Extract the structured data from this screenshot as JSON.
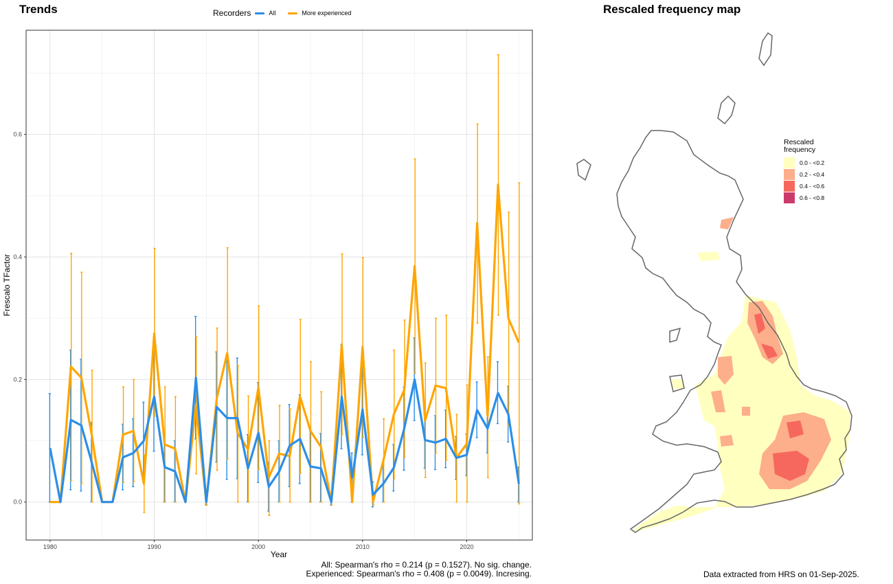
{
  "left_panel": {
    "title": "Trends"
  },
  "right_panel": {
    "title": "Rescaled frequency map"
  },
  "legend": {
    "title": "Recorders",
    "entries": [
      {
        "label": "All",
        "color": "#2b8ee8"
      },
      {
        "label": "More experienced",
        "color": "#ffa500"
      }
    ]
  },
  "stats": {
    "all": "All: Spearman's rho = 0.214 (p = 0.1527). No sig. change.",
    "experienced": "Experienced: Spearman's rho = 0.408 (p = 0.0049). Incresing."
  },
  "footer": "Data extracted from HRS on 01-Sep-2025.",
  "map_legend": {
    "title_line1": "Rescaled",
    "title_line2": "frequency",
    "items": [
      {
        "label": "0.0 - <0.2",
        "color": "#ffffc0"
      },
      {
        "label": "0.2 - <0.4",
        "color": "#fdae8a"
      },
      {
        "label": "0.4 - <0.6",
        "color": "#f6685e"
      },
      {
        "label": "0.6 - <0.8",
        "color": "#cc3a6c"
      }
    ]
  },
  "chart_data": {
    "type": "line",
    "xlabel": "Year",
    "ylabel": "Frescalo TFactor",
    "xlim": [
      1977.7,
      2026.3
    ],
    "ylim": [
      -0.062,
      0.77
    ],
    "xticks": [
      1980,
      1990,
      2000,
      2010,
      2020
    ],
    "xtick_labels": [
      "1980",
      "1990",
      "2000",
      "2010",
      "2020"
    ],
    "yticks": [
      0.0,
      0.2,
      0.4,
      0.6
    ],
    "ytick_labels": [
      "0.0",
      "0.2",
      "0.4",
      "0.6"
    ],
    "grid": true,
    "legend_position": "top",
    "series": [
      {
        "name": "All",
        "color": "#2b8ee8",
        "points": [
          [
            1980,
            0.088,
            0,
            0.177
          ],
          [
            1981,
            0.0,
            0,
            0
          ],
          [
            1982,
            0.134,
            0.02,
            0.248
          ],
          [
            1983,
            0.125,
            0.018,
            0.233
          ],
          [
            1984,
            0.065,
            0.0,
            0.13
          ],
          [
            1985,
            0.0,
            0,
            0
          ],
          [
            1986,
            0.0,
            0,
            0
          ],
          [
            1987,
            0.073,
            0.02,
            0.127
          ],
          [
            1988,
            0.08,
            0.025,
            0.136
          ],
          [
            1989,
            0.1,
            0.037,
            0.163
          ],
          [
            1990,
            0.172,
            0.083,
            0.261
          ],
          [
            1991,
            0.057,
            0,
            0.113
          ],
          [
            1992,
            0.05,
            0,
            0.1
          ],
          [
            1993,
            0.0,
            0,
            0
          ],
          [
            1994,
            0.203,
            0.103,
            0.303
          ],
          [
            1995,
            0.0,
            -0.005,
            0.005
          ],
          [
            1996,
            0.155,
            0.065,
            0.245
          ],
          [
            1997,
            0.137,
            0.037,
            0.237
          ],
          [
            1998,
            0.137,
            0.038,
            0.235
          ],
          [
            1999,
            0.055,
            0,
            0.11
          ],
          [
            2000,
            0.113,
            0.032,
            0.195
          ],
          [
            2001,
            0.025,
            -0.015,
            0.065
          ],
          [
            2002,
            0.05,
            0,
            0.1
          ],
          [
            2003,
            0.092,
            0.025,
            0.159
          ],
          [
            2004,
            0.103,
            0.03,
            0.175
          ],
          [
            2005,
            0.058,
            0,
            0.117
          ],
          [
            2006,
            0.055,
            0,
            0.112
          ],
          [
            2007,
            0.0,
            -0.005,
            0.005
          ],
          [
            2008,
            0.172,
            0.087,
            0.257
          ],
          [
            2009,
            0.04,
            0,
            0.08
          ],
          [
            2010,
            0.151,
            0.077,
            0.226
          ],
          [
            2011,
            0.012,
            -0.008,
            0.033
          ],
          [
            2012,
            0.03,
            0,
            0.06
          ],
          [
            2013,
            0.056,
            0.018,
            0.094
          ],
          [
            2014,
            0.12,
            0.052,
            0.187
          ],
          [
            2015,
            0.2,
            0.133,
            0.268
          ],
          [
            2016,
            0.101,
            0.055,
            0.147
          ],
          [
            2017,
            0.097,
            0.053,
            0.141
          ],
          [
            2018,
            0.103,
            0.056,
            0.15
          ],
          [
            2019,
            0.072,
            0.037,
            0.107
          ],
          [
            2020,
            0.077,
            0.043,
            0.111
          ],
          [
            2021,
            0.15,
            0.105,
            0.196
          ],
          [
            2022,
            0.12,
            0.08,
            0.16
          ],
          [
            2023,
            0.178,
            0.128,
            0.229
          ],
          [
            2024,
            0.143,
            0.098,
            0.189
          ],
          [
            2025,
            0.03,
            0.0,
            0.057
          ]
        ]
      },
      {
        "name": "More experienced",
        "color": "#ffa500",
        "points": [
          [
            1980,
            0.0,
            0,
            0
          ],
          [
            1981,
            0.0,
            0,
            0
          ],
          [
            1982,
            0.221,
            0.035,
            0.406
          ],
          [
            1983,
            0.203,
            0.03,
            0.375
          ],
          [
            1984,
            0.11,
            0.0,
            0.215
          ],
          [
            1985,
            0.0,
            0,
            0
          ],
          [
            1986,
            0.0,
            0,
            0
          ],
          [
            1987,
            0.11,
            0.032,
            0.188
          ],
          [
            1988,
            0.116,
            0.033,
            0.2
          ],
          [
            1989,
            0.03,
            -0.017,
            0.077
          ],
          [
            1990,
            0.275,
            0.14,
            0.414
          ],
          [
            1991,
            0.094,
            0,
            0.188
          ],
          [
            1992,
            0.087,
            0,
            0.172
          ],
          [
            1993,
            0.0,
            0,
            0
          ],
          [
            1994,
            0.158,
            0.046,
            0.27
          ],
          [
            1995,
            0.0,
            -0.005,
            0.005
          ],
          [
            1996,
            0.169,
            0.052,
            0.284
          ],
          [
            1997,
            0.243,
            0.07,
            0.415
          ],
          [
            1998,
            0.113,
            0,
            0.223
          ],
          [
            1999,
            0.086,
            0,
            0.173
          ],
          [
            2000,
            0.187,
            0.053,
            0.32
          ],
          [
            2001,
            0.04,
            -0.022,
            0.1
          ],
          [
            2002,
            0.079,
            0,
            0.158
          ],
          [
            2003,
            0.075,
            0,
            0.152
          ],
          [
            2004,
            0.172,
            0.047,
            0.298
          ],
          [
            2005,
            0.116,
            0,
            0.229
          ],
          [
            2006,
            0.09,
            0,
            0.18
          ],
          [
            2007,
            0.0,
            -0.005,
            0.005
          ],
          [
            2008,
            0.257,
            0.11,
            0.405
          ],
          [
            2009,
            0.0,
            0,
            0
          ],
          [
            2010,
            0.253,
            0.105,
            0.399
          ],
          [
            2011,
            0.0,
            -0.005,
            0.005
          ],
          [
            2012,
            0.068,
            0,
            0.136
          ],
          [
            2013,
            0.143,
            0.038,
            0.248
          ],
          [
            2014,
            0.183,
            0.073,
            0.297
          ],
          [
            2015,
            0.385,
            0.21,
            0.56
          ],
          [
            2016,
            0.133,
            0.04,
            0.227
          ],
          [
            2017,
            0.19,
            0.08,
            0.3
          ],
          [
            2018,
            0.186,
            0.068,
            0.305
          ],
          [
            2019,
            0.072,
            0,
            0.143
          ],
          [
            2020,
            0.095,
            0,
            0.191
          ],
          [
            2021,
            0.455,
            0.292,
            0.617
          ],
          [
            2022,
            0.14,
            0.04,
            0.237
          ],
          [
            2023,
            0.518,
            0.305,
            0.73
          ],
          [
            2024,
            0.3,
            0.125,
            0.473
          ],
          [
            2025,
            0.26,
            -0.003,
            0.521
          ]
        ]
      }
    ]
  }
}
